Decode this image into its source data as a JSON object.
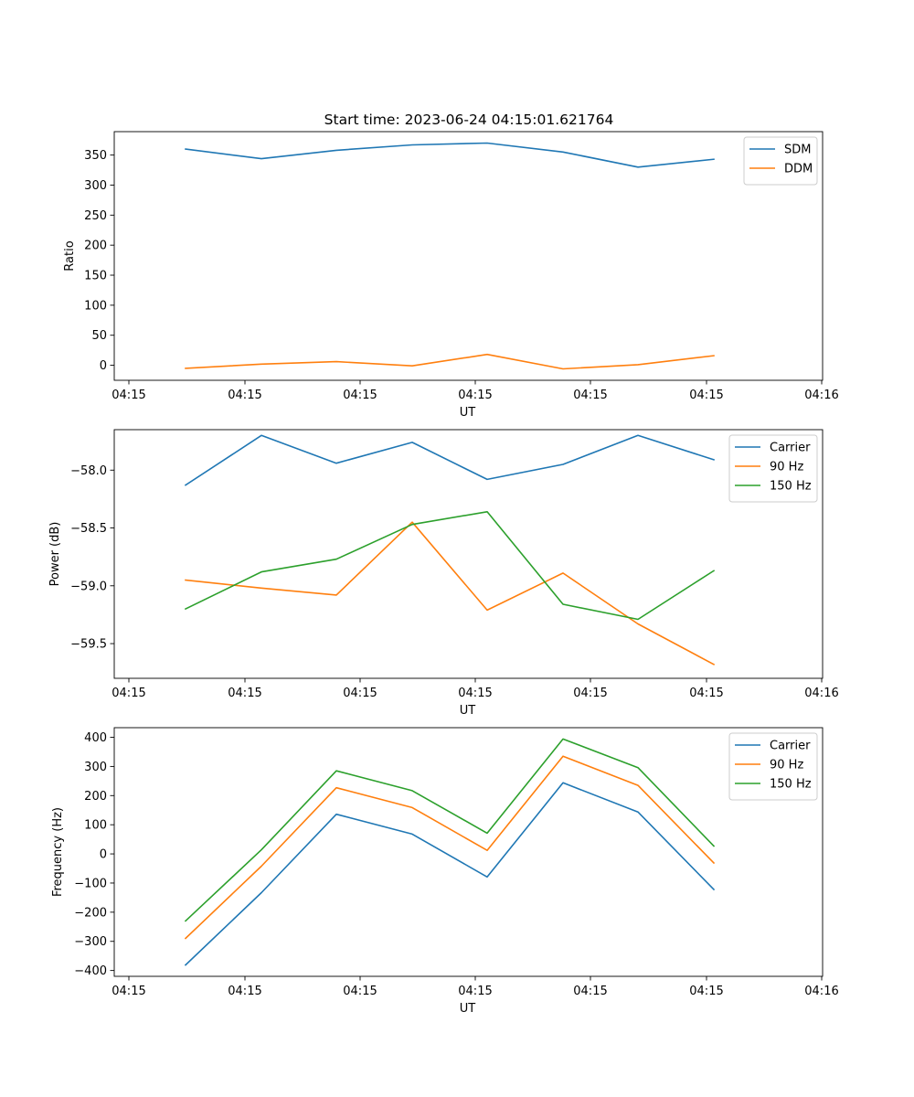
{
  "title": "Start time: 2023-06-24 04:15:01.621764",
  "colors": {
    "blue": "#1f77b4",
    "orange": "#ff7f0e",
    "green": "#2ca02c"
  },
  "chart_data": [
    {
      "type": "line",
      "xlabel": "UT",
      "ylabel": "Ratio",
      "x_tick_labels": [
        "04:15",
        "04:15",
        "04:15",
        "04:15",
        "04:15",
        "04:15",
        "04:16"
      ],
      "yticks": [
        0,
        50,
        100,
        150,
        200,
        250,
        300,
        350
      ],
      "ylim": [
        -25,
        389
      ],
      "legend_position": "upper right",
      "series": [
        {
          "name": "SDM",
          "color": "#1f77b4",
          "values": [
            360,
            344,
            358,
            367,
            370,
            355,
            330,
            343
          ]
        },
        {
          "name": "DDM",
          "color": "#ff7f0e",
          "values": [
            -5,
            2,
            6,
            -1,
            18,
            -6,
            1,
            16
          ]
        }
      ]
    },
    {
      "type": "line",
      "xlabel": "UT",
      "ylabel": "Power (dB)",
      "x_tick_labels": [
        "04:15",
        "04:15",
        "04:15",
        "04:15",
        "04:15",
        "04:15",
        "04:16"
      ],
      "yticks": [
        -58.0,
        -58.5,
        -59.0,
        -59.5
      ],
      "ytick_labels": [
        "−58.0",
        "−58.5",
        "−59.0",
        "−59.5"
      ],
      "ylim": [
        -59.8,
        -57.65
      ],
      "legend_position": "upper right",
      "series": [
        {
          "name": "Carrier",
          "color": "#1f77b4",
          "values": [
            -58.13,
            -57.7,
            -57.94,
            -57.76,
            -58.08,
            -57.95,
            -57.7,
            -57.91
          ]
        },
        {
          "name": "90 Hz",
          "color": "#ff7f0e",
          "values": [
            -58.95,
            -59.02,
            -59.08,
            -58.45,
            -59.21,
            -58.89,
            -59.33,
            -59.68
          ]
        },
        {
          "name": "150 Hz",
          "color": "#2ca02c",
          "values": [
            -59.2,
            -58.88,
            -58.77,
            -58.47,
            -58.36,
            -59.16,
            -59.29,
            -58.87
          ]
        }
      ]
    },
    {
      "type": "line",
      "xlabel": "UT",
      "ylabel": "Frequency (Hz)",
      "x_tick_labels": [
        "04:15",
        "04:15",
        "04:15",
        "04:15",
        "04:15",
        "04:15",
        "04:16"
      ],
      "yticks": [
        -400,
        -300,
        -200,
        -100,
        0,
        100,
        200,
        300,
        400
      ],
      "ytick_labels": [
        "−400",
        "−300",
        "−200",
        "−100",
        "0",
        "100",
        "200",
        "300",
        "400"
      ],
      "ylim": [
        -420,
        433
      ],
      "legend_position": "upper right",
      "series": [
        {
          "name": "Carrier",
          "color": "#1f77b4",
          "values": [
            -381,
            -133,
            136,
            68,
            -79,
            244,
            144,
            -122
          ]
        },
        {
          "name": "90 Hz",
          "color": "#ff7f0e",
          "values": [
            -290,
            -42,
            227,
            159,
            12,
            335,
            235,
            -31
          ]
        },
        {
          "name": "150 Hz",
          "color": "#2ca02c",
          "values": [
            -230,
            14,
            285,
            217,
            71,
            394,
            296,
            27
          ]
        }
      ]
    }
  ]
}
